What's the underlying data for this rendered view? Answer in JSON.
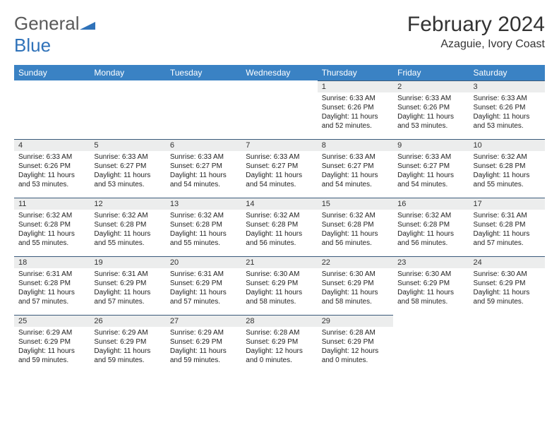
{
  "logo": {
    "general": "General",
    "blue": "Blue"
  },
  "title": "February 2024",
  "location": "Azaguie, Ivory Coast",
  "dayHeaders": [
    "Sunday",
    "Monday",
    "Tuesday",
    "Wednesday",
    "Thursday",
    "Friday",
    "Saturday"
  ],
  "colors": {
    "headerBg": "#3a82c4",
    "headerText": "#ffffff",
    "dayBarBg": "#eceded",
    "bodyText": "#222222",
    "logoGray": "#5a5a5a",
    "logoBlue": "#2f72b9"
  },
  "weeks": [
    [
      {
        "day": "",
        "sunrise": "",
        "sunset": "",
        "daylight": ""
      },
      {
        "day": "",
        "sunrise": "",
        "sunset": "",
        "daylight": ""
      },
      {
        "day": "",
        "sunrise": "",
        "sunset": "",
        "daylight": ""
      },
      {
        "day": "",
        "sunrise": "",
        "sunset": "",
        "daylight": ""
      },
      {
        "day": "1",
        "sunrise": "Sunrise: 6:33 AM",
        "sunset": "Sunset: 6:26 PM",
        "daylight": "Daylight: 11 hours and 52 minutes."
      },
      {
        "day": "2",
        "sunrise": "Sunrise: 6:33 AM",
        "sunset": "Sunset: 6:26 PM",
        "daylight": "Daylight: 11 hours and 53 minutes."
      },
      {
        "day": "3",
        "sunrise": "Sunrise: 6:33 AM",
        "sunset": "Sunset: 6:26 PM",
        "daylight": "Daylight: 11 hours and 53 minutes."
      }
    ],
    [
      {
        "day": "4",
        "sunrise": "Sunrise: 6:33 AM",
        "sunset": "Sunset: 6:26 PM",
        "daylight": "Daylight: 11 hours and 53 minutes."
      },
      {
        "day": "5",
        "sunrise": "Sunrise: 6:33 AM",
        "sunset": "Sunset: 6:27 PM",
        "daylight": "Daylight: 11 hours and 53 minutes."
      },
      {
        "day": "6",
        "sunrise": "Sunrise: 6:33 AM",
        "sunset": "Sunset: 6:27 PM",
        "daylight": "Daylight: 11 hours and 54 minutes."
      },
      {
        "day": "7",
        "sunrise": "Sunrise: 6:33 AM",
        "sunset": "Sunset: 6:27 PM",
        "daylight": "Daylight: 11 hours and 54 minutes."
      },
      {
        "day": "8",
        "sunrise": "Sunrise: 6:33 AM",
        "sunset": "Sunset: 6:27 PM",
        "daylight": "Daylight: 11 hours and 54 minutes."
      },
      {
        "day": "9",
        "sunrise": "Sunrise: 6:33 AM",
        "sunset": "Sunset: 6:27 PM",
        "daylight": "Daylight: 11 hours and 54 minutes."
      },
      {
        "day": "10",
        "sunrise": "Sunrise: 6:32 AM",
        "sunset": "Sunset: 6:28 PM",
        "daylight": "Daylight: 11 hours and 55 minutes."
      }
    ],
    [
      {
        "day": "11",
        "sunrise": "Sunrise: 6:32 AM",
        "sunset": "Sunset: 6:28 PM",
        "daylight": "Daylight: 11 hours and 55 minutes."
      },
      {
        "day": "12",
        "sunrise": "Sunrise: 6:32 AM",
        "sunset": "Sunset: 6:28 PM",
        "daylight": "Daylight: 11 hours and 55 minutes."
      },
      {
        "day": "13",
        "sunrise": "Sunrise: 6:32 AM",
        "sunset": "Sunset: 6:28 PM",
        "daylight": "Daylight: 11 hours and 55 minutes."
      },
      {
        "day": "14",
        "sunrise": "Sunrise: 6:32 AM",
        "sunset": "Sunset: 6:28 PM",
        "daylight": "Daylight: 11 hours and 56 minutes."
      },
      {
        "day": "15",
        "sunrise": "Sunrise: 6:32 AM",
        "sunset": "Sunset: 6:28 PM",
        "daylight": "Daylight: 11 hours and 56 minutes."
      },
      {
        "day": "16",
        "sunrise": "Sunrise: 6:32 AM",
        "sunset": "Sunset: 6:28 PM",
        "daylight": "Daylight: 11 hours and 56 minutes."
      },
      {
        "day": "17",
        "sunrise": "Sunrise: 6:31 AM",
        "sunset": "Sunset: 6:28 PM",
        "daylight": "Daylight: 11 hours and 57 minutes."
      }
    ],
    [
      {
        "day": "18",
        "sunrise": "Sunrise: 6:31 AM",
        "sunset": "Sunset: 6:28 PM",
        "daylight": "Daylight: 11 hours and 57 minutes."
      },
      {
        "day": "19",
        "sunrise": "Sunrise: 6:31 AM",
        "sunset": "Sunset: 6:29 PM",
        "daylight": "Daylight: 11 hours and 57 minutes."
      },
      {
        "day": "20",
        "sunrise": "Sunrise: 6:31 AM",
        "sunset": "Sunset: 6:29 PM",
        "daylight": "Daylight: 11 hours and 57 minutes."
      },
      {
        "day": "21",
        "sunrise": "Sunrise: 6:30 AM",
        "sunset": "Sunset: 6:29 PM",
        "daylight": "Daylight: 11 hours and 58 minutes."
      },
      {
        "day": "22",
        "sunrise": "Sunrise: 6:30 AM",
        "sunset": "Sunset: 6:29 PM",
        "daylight": "Daylight: 11 hours and 58 minutes."
      },
      {
        "day": "23",
        "sunrise": "Sunrise: 6:30 AM",
        "sunset": "Sunset: 6:29 PM",
        "daylight": "Daylight: 11 hours and 58 minutes."
      },
      {
        "day": "24",
        "sunrise": "Sunrise: 6:30 AM",
        "sunset": "Sunset: 6:29 PM",
        "daylight": "Daylight: 11 hours and 59 minutes."
      }
    ],
    [
      {
        "day": "25",
        "sunrise": "Sunrise: 6:29 AM",
        "sunset": "Sunset: 6:29 PM",
        "daylight": "Daylight: 11 hours and 59 minutes."
      },
      {
        "day": "26",
        "sunrise": "Sunrise: 6:29 AM",
        "sunset": "Sunset: 6:29 PM",
        "daylight": "Daylight: 11 hours and 59 minutes."
      },
      {
        "day": "27",
        "sunrise": "Sunrise: 6:29 AM",
        "sunset": "Sunset: 6:29 PM",
        "daylight": "Daylight: 11 hours and 59 minutes."
      },
      {
        "day": "28",
        "sunrise": "Sunrise: 6:28 AM",
        "sunset": "Sunset: 6:29 PM",
        "daylight": "Daylight: 12 hours and 0 minutes."
      },
      {
        "day": "29",
        "sunrise": "Sunrise: 6:28 AM",
        "sunset": "Sunset: 6:29 PM",
        "daylight": "Daylight: 12 hours and 0 minutes."
      },
      {
        "day": "",
        "sunrise": "",
        "sunset": "",
        "daylight": ""
      },
      {
        "day": "",
        "sunrise": "",
        "sunset": "",
        "daylight": ""
      }
    ]
  ]
}
